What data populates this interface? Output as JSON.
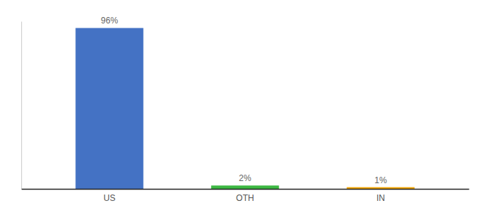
{
  "chart_data": {
    "type": "bar",
    "categories": [
      "US",
      "OTH",
      "IN"
    ],
    "values": [
      96,
      2,
      1
    ],
    "value_labels": [
      "96%",
      "2%",
      "1%"
    ],
    "colors": [
      "#4472c4",
      "#3db843",
      "#f0a500"
    ],
    "ylim": [
      0,
      100
    ],
    "grid": false,
    "data_labels": true,
    "tick_labels": "x"
  }
}
